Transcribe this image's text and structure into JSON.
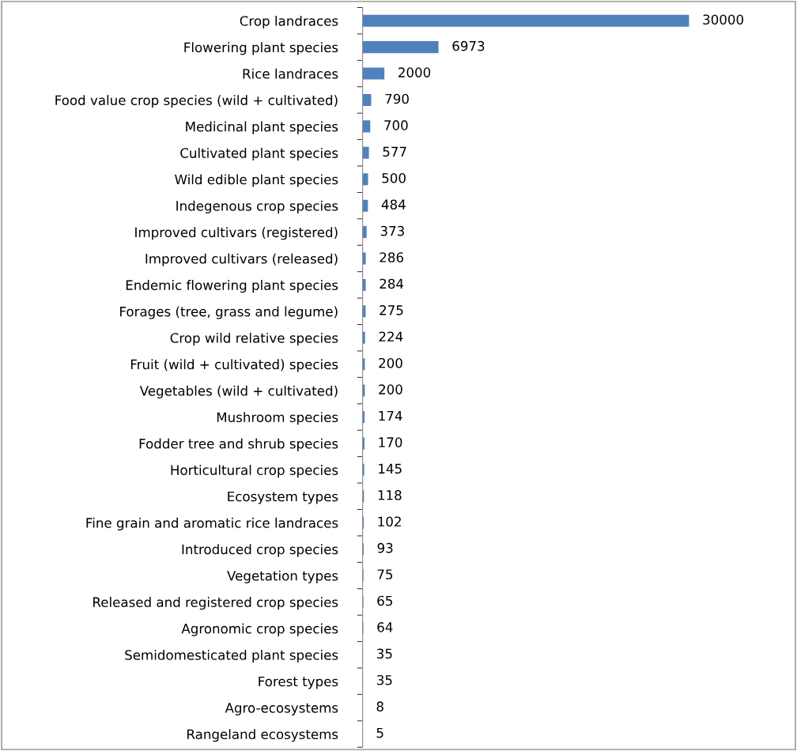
{
  "chart_data": {
    "type": "bar",
    "orientation": "horizontal",
    "categories": [
      "Crop landraces",
      "Flowering plant species",
      "Rice landraces",
      "Food value crop species (wild + cultivated)",
      "Medicinal plant species",
      "Cultivated plant species",
      "Wild edible plant species",
      "Indegenous crop species",
      "Improved cultivars (registered)",
      "Improved cultivars (released)",
      "Endemic flowering plant species",
      "Forages (tree, grass and legume)",
      "Crop wild relative species",
      "Fruit (wild + cultivated) species",
      "Vegetables (wild + cultivated)",
      "Mushroom species",
      "Fodder tree and shrub species",
      "Horticultural crop species",
      "Ecosystem types",
      "Fine grain and aromatic rice landraces",
      "Introduced crop species",
      "Vegetation types",
      "Released and registered crop species",
      "Agronomic crop species",
      "Semidomesticated plant species",
      "Forest types",
      "Agro-ecosystems",
      "Rangeland ecosystems"
    ],
    "values": [
      30000,
      6973,
      2000,
      790,
      700,
      577,
      500,
      484,
      373,
      286,
      284,
      275,
      224,
      200,
      200,
      174,
      170,
      145,
      118,
      102,
      93,
      75,
      65,
      64,
      35,
      35,
      8,
      5
    ],
    "color": "#4f81bd",
    "data_labels": true,
    "tick_labels": "y",
    "grid": false,
    "legend": false
  }
}
